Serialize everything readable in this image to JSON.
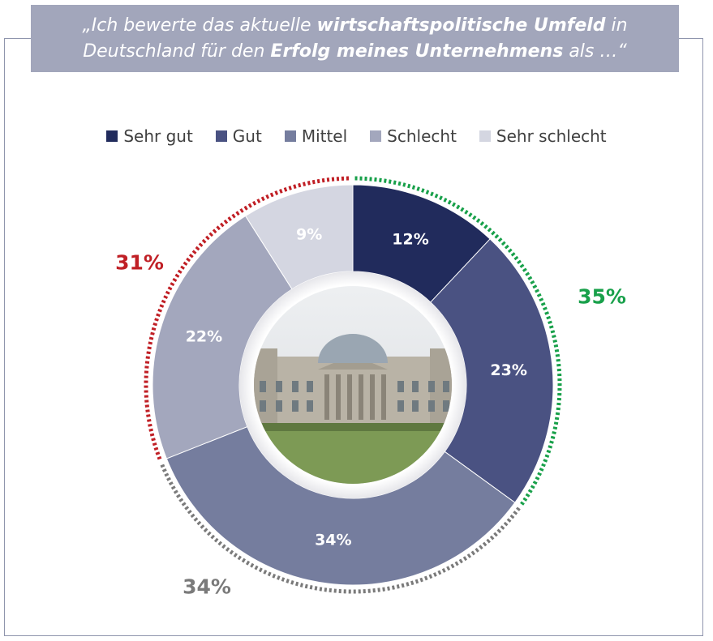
{
  "title": {
    "line1_a": "„Ich bewerte das aktuelle ",
    "line1_b": "wirtschaftspolitische Umfeld",
    "line1_c": " in",
    "line2_a": "Deutschland für den ",
    "line2_b": "Erfolg meines Unternehmens",
    "line2_c": " als …“"
  },
  "chart_data": {
    "type": "pie",
    "style": "donut",
    "categories": [
      "Sehr gut",
      "Gut",
      "Mittel",
      "Schlecht",
      "Sehr schlecht"
    ],
    "values": [
      12,
      23,
      34,
      22,
      9
    ],
    "labels": [
      "12%",
      "23%",
      "34%",
      "22%",
      "9%"
    ],
    "colors": [
      "#212b5c",
      "#4a5282",
      "#757d9e",
      "#a3a7bd",
      "#d4d6e1"
    ],
    "groups": [
      {
        "label": "35%",
        "color": "#18a04a",
        "categories": [
          "Sehr gut",
          "Gut"
        ]
      },
      {
        "label": "34%",
        "color": "#7a7a7a",
        "categories": [
          "Mittel"
        ]
      },
      {
        "label": "31%",
        "color": "#c01f25",
        "categories": [
          "Schlecht",
          "Sehr schlecht"
        ]
      }
    ]
  }
}
